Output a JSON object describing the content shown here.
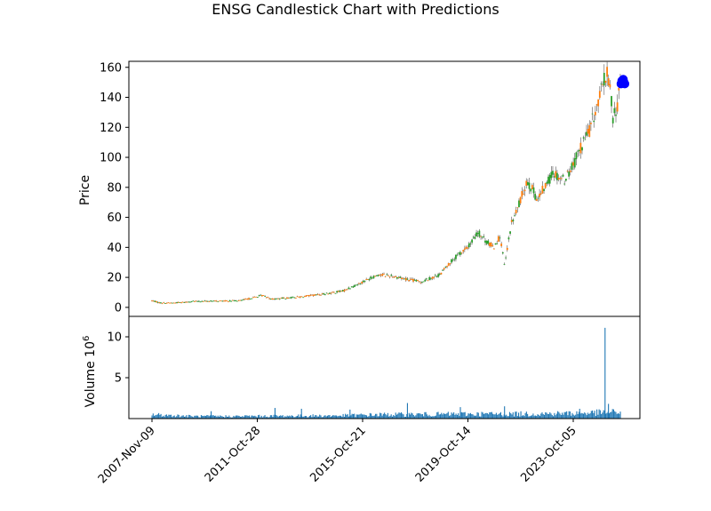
{
  "chart_data": {
    "type": "candlestick",
    "title": "ENSG Candlestick Chart with Predictions",
    "colors": {
      "up": "#2ca02c",
      "down": "#ff7f0e",
      "wick": "#555555",
      "volume": "#1f77b4",
      "prediction": "#0000ff"
    },
    "price_panel": {
      "ylabel": "Price",
      "ylim": [
        -6,
        164
      ],
      "yticks": [
        0,
        20,
        40,
        60,
        80,
        100,
        120,
        140,
        160
      ],
      "price_path": [
        {
          "date": "2007-11-09",
          "close": 4.5
        },
        {
          "date": "2008-03-01",
          "close": 3.0
        },
        {
          "date": "2008-09-01",
          "close": 3.0
        },
        {
          "date": "2009-06-01",
          "close": 4.0
        },
        {
          "date": "2010-06-01",
          "close": 4.2
        },
        {
          "date": "2011-03-01",
          "close": 4.5
        },
        {
          "date": "2011-08-01",
          "close": 6.0
        },
        {
          "date": "2012-01-01",
          "close": 8.0
        },
        {
          "date": "2012-06-01",
          "close": 5.5
        },
        {
          "date": "2013-06-01",
          "close": 7.0
        },
        {
          "date": "2014-06-01",
          "close": 9.0
        },
        {
          "date": "2015-02-01",
          "close": 11.0
        },
        {
          "date": "2015-10-21",
          "close": 17.0
        },
        {
          "date": "2016-06-01",
          "close": 22.0
        },
        {
          "date": "2016-12-01",
          "close": 21.0
        },
        {
          "date": "2017-06-01",
          "close": 19.0
        },
        {
          "date": "2018-01-01",
          "close": 17.0
        },
        {
          "date": "2018-10-01",
          "close": 22.0
        },
        {
          "date": "2019-01-01",
          "close": 28.0
        },
        {
          "date": "2019-06-01",
          "close": 35.0
        },
        {
          "date": "2019-10-14",
          "close": 40.0
        },
        {
          "date": "2020-03-01",
          "close": 50.0
        },
        {
          "date": "2020-06-01",
          "close": 45.0
        },
        {
          "date": "2020-10-01",
          "close": 40.0
        },
        {
          "date": "2021-01-01",
          "close": 48.0
        },
        {
          "date": "2021-03-01",
          "close": 27.0
        },
        {
          "date": "2021-06-01",
          "close": 55.0
        },
        {
          "date": "2021-10-01",
          "close": 70.0
        },
        {
          "date": "2022-01-01",
          "close": 85.0
        },
        {
          "date": "2022-06-01",
          "close": 72.0
        },
        {
          "date": "2023-01-01",
          "close": 90.0
        },
        {
          "date": "2023-06-01",
          "close": 85.0
        },
        {
          "date": "2023-10-05",
          "close": 95.0
        },
        {
          "date": "2024-01-01",
          "close": 105.0
        },
        {
          "date": "2024-06-01",
          "close": 120.0
        },
        {
          "date": "2024-09-01",
          "close": 135.0
        },
        {
          "date": "2024-12-01",
          "close": 150.0
        },
        {
          "date": "2025-01-15",
          "close": 155.0
        },
        {
          "date": "2025-03-01",
          "close": 145.0
        },
        {
          "date": "2025-04-10",
          "close": 125.0
        },
        {
          "date": "2025-06-01",
          "close": 135.0
        },
        {
          "date": "2025-07-15",
          "close": 148.0
        }
      ],
      "predictions": [
        {
          "date": "2025-07-25",
          "value": 149
        },
        {
          "date": "2025-08-05",
          "value": 151
        },
        {
          "date": "2025-08-15",
          "value": 150
        },
        {
          "date": "2025-08-25",
          "value": 152
        },
        {
          "date": "2025-09-05",
          "value": 150
        },
        {
          "date": "2025-09-15",
          "value": 149
        }
      ]
    },
    "volume_panel": {
      "ylabel": "Volume  10",
      "ylabel_exponent": "6",
      "ylim": [
        0,
        12.5
      ],
      "yticks": [
        5,
        10
      ],
      "volume_path": [
        {
          "date": "2007-11-09",
          "value": 0.6
        },
        {
          "date": "2009-06-01",
          "value": 0.35
        },
        {
          "date": "2011-01-01",
          "value": 0.35
        },
        {
          "date": "2013-01-01",
          "value": 0.4
        },
        {
          "date": "2015-01-01",
          "value": 0.45
        },
        {
          "date": "2016-06-01",
          "value": 0.6
        },
        {
          "date": "2018-06-01",
          "value": 0.65
        },
        {
          "date": "2019-10-14",
          "value": 0.7
        },
        {
          "date": "2021-06-01",
          "value": 0.7
        },
        {
          "date": "2023-10-05",
          "value": 0.8
        },
        {
          "date": "2025-07-15",
          "value": 1.0
        }
      ],
      "spikes": [
        {
          "date": "2010-02-01",
          "value": 0.9
        },
        {
          "date": "2012-07-01",
          "value": 1.3
        },
        {
          "date": "2013-07-01",
          "value": 1.2
        },
        {
          "date": "2015-05-01",
          "value": 1.1
        },
        {
          "date": "2017-07-01",
          "value": 1.9
        },
        {
          "date": "2019-07-01",
          "value": 1.4
        },
        {
          "date": "2021-03-01",
          "value": 1.5
        },
        {
          "date": "2024-01-01",
          "value": 1.2
        },
        {
          "date": "2024-12-16",
          "value": 11.1
        },
        {
          "date": "2025-02-01",
          "value": 1.8
        }
      ]
    },
    "x_axis": {
      "ticks": [
        "2007-Nov-09",
        "2011-Oct-28",
        "2015-Oct-21",
        "2019-Oct-14",
        "2023-Oct-05"
      ],
      "tick_rotation_deg": 45
    }
  }
}
